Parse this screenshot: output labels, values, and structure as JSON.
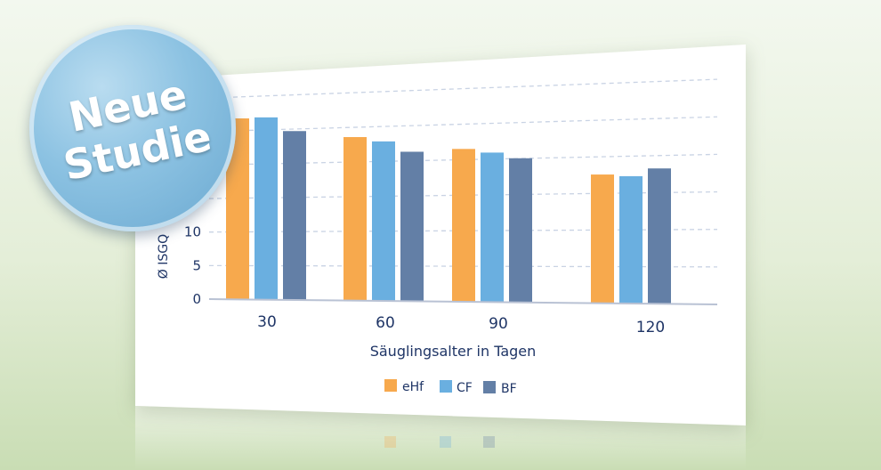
{
  "badge": {
    "line1": "Neue",
    "line2": "Studie"
  },
  "colors": {
    "eHf": "#f7a94d",
    "CF": "#6aafe0",
    "BF": "#637fa6",
    "text": "#1f3566",
    "grid": "#c9d3e4"
  },
  "chart_data": {
    "type": "bar",
    "categories": [
      "30",
      "60",
      "90",
      "120"
    ],
    "series": [
      {
        "name": "eHf",
        "values": [
          27.0,
          24.4,
          22.8,
          19.2
        ]
      },
      {
        "name": "CF",
        "values": [
          27.2,
          23.8,
          22.3,
          19.0
        ]
      },
      {
        "name": "BF",
        "values": [
          25.2,
          22.3,
          21.5,
          20.2
        ]
      }
    ],
    "xlabel": "Säuglingsalter in Tagen",
    "ylabel": "Ø ISGQ",
    "yticks": [
      0,
      5,
      10
    ],
    "ylim": [
      0,
      30
    ],
    "grid": true,
    "legend": "bottom"
  }
}
